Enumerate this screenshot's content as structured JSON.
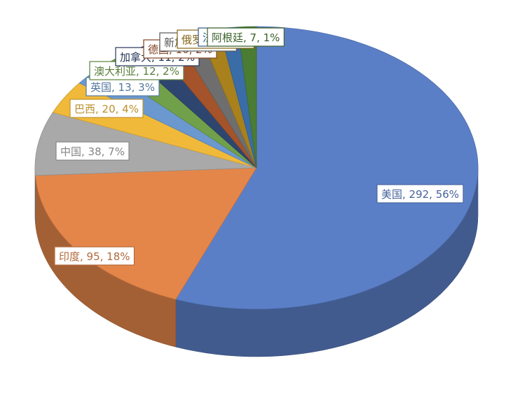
{
  "chart_data": {
    "type": "pie",
    "style": "3d",
    "title": "",
    "slices": [
      {
        "label": "美国",
        "value": 292,
        "percent": "56%",
        "color": "#5B7FC7",
        "text": "美国, 292, 56%"
      },
      {
        "label": "印度",
        "value": 95,
        "percent": "18%",
        "color": "#E4864A",
        "text": "印度, 95, 18%"
      },
      {
        "label": "中国",
        "value": 38,
        "percent": "7%",
        "color": "#A9A9A9",
        "text": "中国, 38, 7%"
      },
      {
        "label": "巴西",
        "value": 20,
        "percent": "4%",
        "color": "#F0B93A",
        "text": "巴西, 20, 4%"
      },
      {
        "label": "英国",
        "value": 13,
        "percent": "3%",
        "color": "#6A98CF",
        "text": "英国, 13, 3%"
      },
      {
        "label": "澳大利亚",
        "value": 12,
        "percent": "2%",
        "color": "#71A04A",
        "text": "澳大利亚, 12, 2%"
      },
      {
        "label": "加拿大",
        "value": 11,
        "percent": "2%",
        "color": "#2E4570",
        "text": "加拿大, 11, 2%"
      },
      {
        "label": "德国",
        "value": 10,
        "percent": "2%",
        "color": "#A4532A",
        "text": "德国, 10, 2%"
      },
      {
        "label": "新加坡",
        "value": 9,
        "percent": "2%",
        "color": "#6E6E6E",
        "text": "新加坡, 9, 2%"
      },
      {
        "label": "俄罗斯",
        "value": 8,
        "percent": "2%",
        "color": "#A8811D",
        "text": "俄罗斯, 8, 2%"
      },
      {
        "label": "法国",
        "value": 7,
        "percent": "1%",
        "color": "#3A6CA8",
        "text": "法国, 7, 1%"
      },
      {
        "label": "阿根廷",
        "value": 7,
        "percent": "1%",
        "color": "#4A7C34",
        "text": "阿根廷, 7, 1%"
      }
    ],
    "legend": "none"
  }
}
